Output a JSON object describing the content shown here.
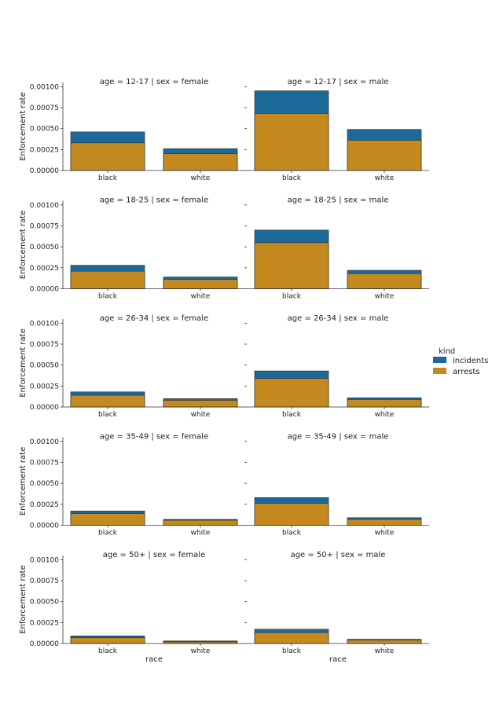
{
  "legend": {
    "title": "kind",
    "items": [
      {
        "label": "incidents",
        "color": "#1b6a99"
      },
      {
        "label": "arrests",
        "color": "#c48a20"
      }
    ]
  },
  "chart_data": {
    "type": "bar",
    "layout": "faceted grid, 5 rows (age) x 2 columns (sex), stacked-overlay bars",
    "ylabel": "Enforcement rate",
    "xlabel": "race",
    "categories": [
      "black",
      "white"
    ],
    "ylim": [
      0,
      0.00105
    ],
    "yticks": [
      "0.00000",
      "0.00025",
      "0.00050",
      "0.00075",
      "0.00100"
    ],
    "colors": {
      "incidents": "#1b6a99",
      "arrests": "#c48a20"
    },
    "facets": [
      {
        "title": "age = 12-17 | sex = female",
        "incidents": [
          0.00046,
          0.00026
        ],
        "arrests": [
          0.00033,
          0.0002
        ]
      },
      {
        "title": "age = 12-17 | sex = male",
        "incidents": [
          0.00095,
          0.00049
        ],
        "arrests": [
          0.00068,
          0.00036
        ]
      },
      {
        "title": "age = 18-25 | sex = female",
        "incidents": [
          0.00028,
          0.00014
        ],
        "arrests": [
          0.00021,
          0.00011
        ]
      },
      {
        "title": "age = 18-25 | sex = male",
        "incidents": [
          0.0007,
          0.00022
        ],
        "arrests": [
          0.00055,
          0.00018
        ]
      },
      {
        "title": "age = 26-34 | sex = female",
        "incidents": [
          0.00018,
          0.0001
        ],
        "arrests": [
          0.00014,
          8e-05
        ]
      },
      {
        "title": "age = 26-34 | sex = male",
        "incidents": [
          0.00043,
          0.00011
        ],
        "arrests": [
          0.00034,
          9e-05
        ]
      },
      {
        "title": "age = 35-49 | sex = female",
        "incidents": [
          0.00017,
          7e-05
        ],
        "arrests": [
          0.00014,
          6e-05
        ]
      },
      {
        "title": "age = 35-49 | sex = male",
        "incidents": [
          0.00033,
          9e-05
        ],
        "arrests": [
          0.00026,
          7e-05
        ]
      },
      {
        "title": "age = 50+ | sex = female",
        "incidents": [
          9e-05,
          3e-05
        ],
        "arrests": [
          7e-05,
          2e-05
        ]
      },
      {
        "title": "age = 50+ | sex = male",
        "incidents": [
          0.00017,
          5e-05
        ],
        "arrests": [
          0.00013,
          4e-05
        ]
      }
    ]
  }
}
